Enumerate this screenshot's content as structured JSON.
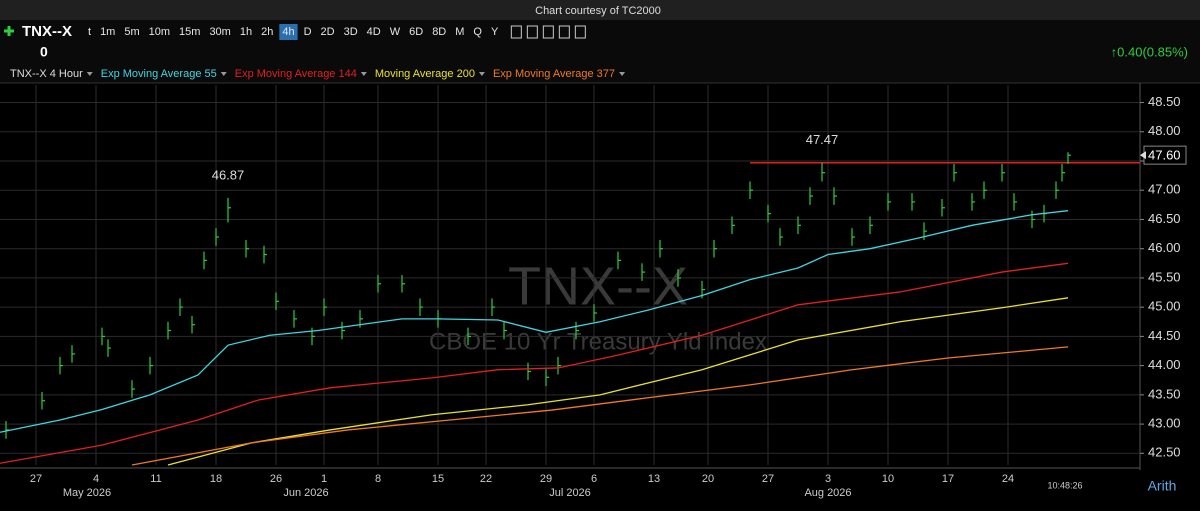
{
  "header": {
    "courtesy": "Chart courtesy of TC2000"
  },
  "toolbar": {
    "symbol": "TNX--X",
    "intervals": [
      "t",
      "1m",
      "5m",
      "10m",
      "15m",
      "30m",
      "1h",
      "2h",
      "4h",
      "D",
      "2D",
      "3D",
      "4D",
      "W",
      "6D",
      "8D",
      "M",
      "Q",
      "Y"
    ],
    "active_interval": "4h",
    "quote": "0",
    "change": "↑0.40(0.85%)"
  },
  "footer": {
    "time": "10:48:26",
    "scale": "Arith"
  },
  "chart_data": {
    "type": "ohlc",
    "watermark": "TNX--X",
    "subtitle": "CBOE 10 Yr Treasury Yld Index",
    "xlim": [
      0,
      190
    ],
    "ylim": [
      42.3,
      48.8
    ],
    "xticks": [
      {
        "value": 6,
        "label": "27"
      },
      {
        "value": 16,
        "label": "4"
      },
      {
        "value": 26,
        "label": "11"
      },
      {
        "value": 36,
        "label": "18"
      },
      {
        "value": 46,
        "label": "26"
      },
      {
        "value": 54,
        "label": "1"
      },
      {
        "value": 63,
        "label": "8"
      },
      {
        "value": 73,
        "label": "15"
      },
      {
        "value": 81,
        "label": "22"
      },
      {
        "value": 91,
        "label": "29"
      },
      {
        "value": 99,
        "label": "6"
      },
      {
        "value": 109,
        "label": "13"
      },
      {
        "value": 118,
        "label": "20"
      },
      {
        "value": 128,
        "label": "27"
      },
      {
        "value": 138,
        "label": "3"
      },
      {
        "value": 148,
        "label": "10"
      },
      {
        "value": 158,
        "label": "17"
      },
      {
        "value": 168,
        "label": "24"
      }
    ],
    "month_ticks": [
      {
        "value": 14.5,
        "label": "May 2026"
      },
      {
        "value": 51,
        "label": "Jun 2026"
      },
      {
        "value": 95,
        "label": "Jul 2026"
      },
      {
        "value": 138,
        "label": "Aug 2026"
      }
    ],
    "yticks": [
      {
        "value": 42.5,
        "label": "42.50"
      },
      {
        "value": 43,
        "label": "43.00"
      },
      {
        "value": 43.5,
        "label": "43.50"
      },
      {
        "value": 44,
        "label": "44.00"
      },
      {
        "value": 44.5,
        "label": "44.50"
      },
      {
        "value": 45,
        "label": "45.00"
      },
      {
        "value": 45.5,
        "label": "45.50"
      },
      {
        "value": 46,
        "label": "46.00"
      },
      {
        "value": 46.5,
        "label": "46.50"
      },
      {
        "value": 47,
        "label": "47.00"
      },
      {
        "value": 47.5,
        "label": "47.50"
      },
      {
        "value": 48,
        "label": "48.00"
      },
      {
        "value": 48.5,
        "label": "48.50"
      }
    ],
    "grid": true,
    "last": {
      "value": 47.6,
      "label": "47.60"
    },
    "hline": {
      "value": 47.47,
      "from": 125,
      "color": "#e02020"
    },
    "annotations": [
      {
        "value": 46.87,
        "x": 38
      },
      {
        "value": 47.47,
        "x": 137
      }
    ],
    "series": [
      {
        "name": "TNX--X 4 Hour",
        "color": "#2ecc40",
        "x": [
          1,
          7,
          10,
          12,
          17,
          18,
          22,
          25,
          28,
          30,
          32,
          34,
          36,
          38,
          41,
          44,
          46,
          49,
          52,
          54,
          57,
          60,
          63,
          67,
          70,
          73,
          78,
          82,
          84,
          88,
          91,
          93,
          96,
          99,
          103,
          107,
          110,
          113,
          117,
          119,
          122,
          125,
          128,
          130,
          133,
          135,
          137,
          139,
          142,
          145,
          148,
          152,
          154,
          157,
          159,
          162,
          164,
          167,
          169,
          172,
          174,
          176,
          177,
          178
        ],
        "high": [
          43.05,
          43.55,
          44.15,
          44.35,
          44.65,
          44.45,
          43.75,
          44.15,
          44.75,
          45.15,
          44.85,
          45.95,
          46.35,
          46.87,
          46.15,
          46.05,
          45.25,
          44.95,
          44.65,
          45.15,
          44.75,
          44.95,
          45.55,
          45.55,
          45.15,
          44.95,
          44.65,
          45.15,
          44.75,
          44.05,
          43.95,
          44.15,
          44.75,
          45.05,
          45.95,
          45.75,
          46.15,
          45.65,
          45.45,
          46.15,
          46.55,
          47.15,
          46.75,
          46.35,
          46.55,
          47.05,
          47.47,
          47.05,
          46.35,
          46.55,
          46.95,
          46.95,
          46.45,
          46.85,
          47.45,
          46.95,
          47.15,
          47.45,
          46.95,
          46.65,
          46.75,
          47.15,
          47.45,
          47.65
        ],
        "low": [
          42.75,
          43.25,
          43.85,
          44.05,
          44.35,
          44.15,
          43.45,
          43.85,
          44.45,
          44.85,
          44.55,
          45.65,
          46.05,
          46.45,
          45.85,
          45.75,
          44.95,
          44.65,
          44.35,
          44.85,
          44.45,
          44.65,
          45.25,
          45.25,
          44.85,
          44.65,
          44.35,
          44.85,
          44.45,
          43.75,
          43.65,
          43.85,
          44.45,
          44.75,
          45.65,
          45.45,
          45.85,
          45.35,
          45.15,
          45.85,
          46.25,
          46.85,
          46.45,
          46.05,
          46.25,
          46.75,
          47.15,
          46.75,
          46.05,
          46.25,
          46.65,
          46.65,
          46.15,
          46.55,
          47.15,
          46.65,
          46.85,
          47.15,
          46.65,
          46.35,
          46.45,
          46.85,
          47.15,
          47.45
        ],
        "close": [
          42.9,
          43.4,
          44.0,
          44.2,
          44.5,
          44.3,
          43.6,
          44.0,
          44.6,
          45.0,
          44.7,
          45.8,
          46.2,
          46.7,
          46.0,
          45.9,
          45.1,
          44.8,
          44.5,
          45.0,
          44.6,
          44.8,
          45.4,
          45.4,
          45.0,
          44.8,
          44.5,
          45.0,
          44.6,
          43.9,
          43.8,
          44.0,
          44.6,
          44.9,
          45.8,
          45.6,
          46.0,
          45.5,
          45.3,
          46.0,
          46.4,
          47.0,
          46.6,
          46.2,
          46.4,
          46.9,
          47.3,
          46.9,
          46.2,
          46.4,
          46.8,
          46.8,
          46.3,
          46.7,
          47.3,
          46.8,
          47.0,
          47.3,
          46.8,
          46.5,
          46.6,
          47.0,
          47.3,
          47.6
        ]
      },
      {
        "name": "Exp Moving Average 55",
        "color": "#3fd6e0",
        "x": [
          0,
          10,
          17,
          25,
          33,
          38,
          45,
          53,
          67,
          73,
          83,
          91,
          100,
          108,
          117,
          125,
          133,
          138,
          145,
          153,
          162,
          172,
          178
        ],
        "values": [
          42.86,
          43.07,
          43.25,
          43.5,
          43.84,
          44.35,
          44.52,
          44.6,
          44.8,
          44.8,
          44.78,
          44.57,
          44.75,
          44.95,
          45.2,
          45.47,
          45.67,
          45.9,
          46.0,
          46.18,
          46.4,
          46.58,
          46.65
        ]
      },
      {
        "name": "Exp Moving Average 144",
        "color": "#e02020",
        "x": [
          0,
          17,
          33,
          43,
          55,
          72,
          83,
          93,
          103,
          117,
          133,
          150,
          167,
          178
        ],
        "values": [
          42.33,
          42.64,
          43.07,
          43.41,
          43.62,
          43.79,
          43.93,
          43.96,
          44.18,
          44.52,
          45.04,
          45.26,
          45.6,
          45.75
        ]
      },
      {
        "name": "Moving Average 200",
        "color": "#e8e030",
        "x": [
          28,
          42,
          55,
          72,
          88,
          100,
          117,
          133,
          150,
          167,
          178
        ],
        "values": [
          42.3,
          42.68,
          42.9,
          43.16,
          43.33,
          43.5,
          43.93,
          44.44,
          44.75,
          44.99,
          45.16
        ]
      },
      {
        "name": "Exp Moving Average 377",
        "color": "#f07a20",
        "x": [
          22,
          42,
          58,
          75,
          92,
          108,
          125,
          142,
          158,
          178
        ],
        "values": [
          42.3,
          42.68,
          42.9,
          43.07,
          43.24,
          43.45,
          43.67,
          43.93,
          44.13,
          44.32
        ]
      }
    ]
  }
}
